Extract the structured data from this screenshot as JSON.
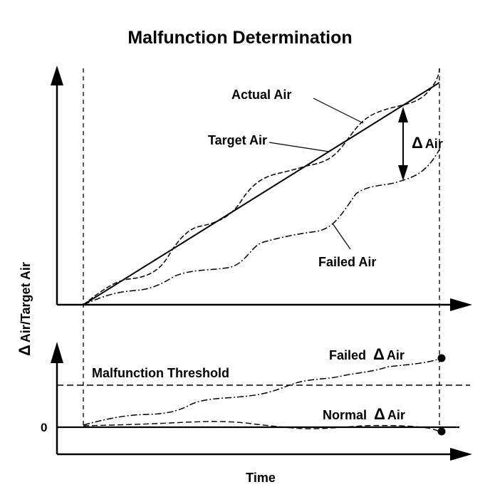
{
  "diagram": {
    "title": "Malfunction Determination",
    "y_axis_label": "Air/Target Air",
    "x_axis_label": "Time",
    "delta_symbol": "Δ",
    "upper_panel": {
      "actual_air_label": "Actual Air",
      "target_air_label": "Target Air",
      "failed_air_label": "Failed Air",
      "delta_air_label": "Air"
    },
    "lower_panel": {
      "threshold_label": "Malfunction Threshold",
      "failed_delta_label": "Failed",
      "normal_delta_label": "Normal",
      "delta_suffix": "Air",
      "zero_label": "0"
    }
  }
}
